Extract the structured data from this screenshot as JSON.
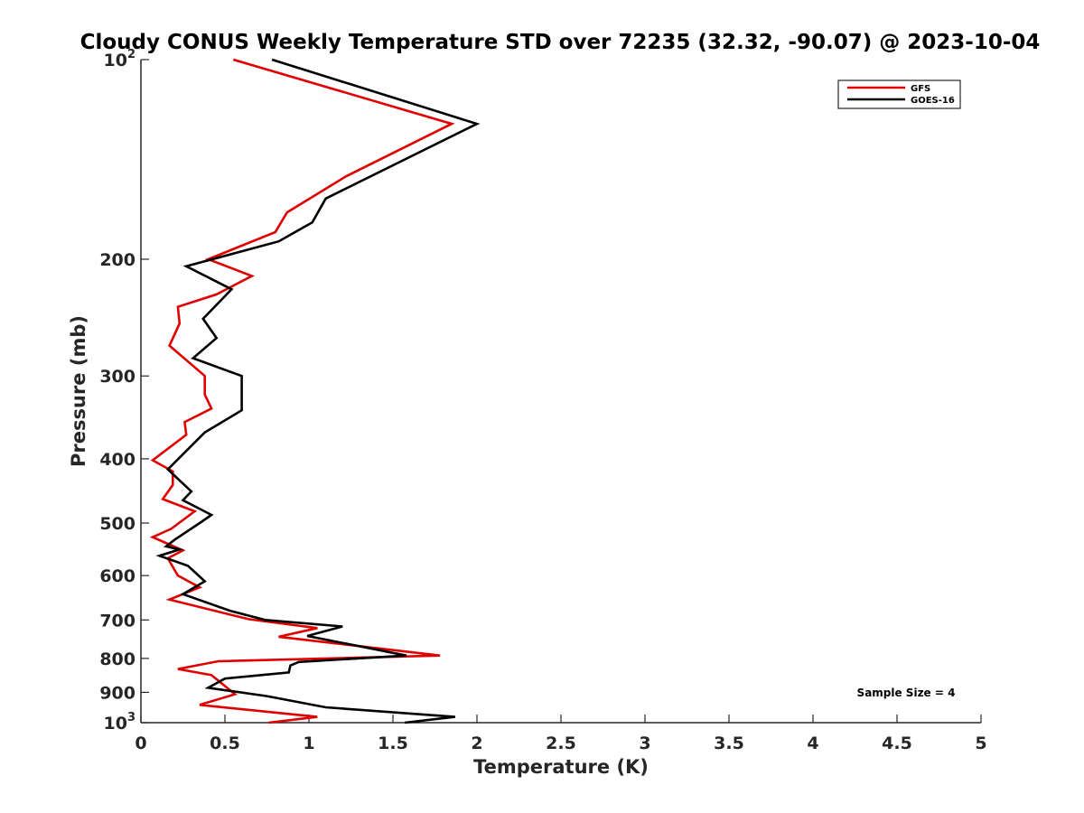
{
  "chart_data": {
    "type": "line",
    "title": "Cloudy CONUS Weekly Temperature STD over 72235 (32.32, -90.07) @ 2023-10-04",
    "xlabel": "Temperature (K)",
    "ylabel": "Pressure (mb)",
    "xlim": [
      0,
      5
    ],
    "ylim": [
      100,
      1000
    ],
    "y_scale": "log",
    "y_reversed": true,
    "x_ticks": [
      "0",
      "0.5",
      "1",
      "1.5",
      "2",
      "2.5",
      "3",
      "3.5",
      "4",
      "4.5",
      "5"
    ],
    "x_tick_values": [
      0,
      0.5,
      1,
      1.5,
      2,
      2.5,
      3,
      3.5,
      4,
      4.5,
      5
    ],
    "y_ticks": [
      {
        "value": 100,
        "base": "10",
        "exp": "2"
      },
      {
        "value": 200,
        "label": "200"
      },
      {
        "value": 300,
        "label": "300"
      },
      {
        "value": 400,
        "label": "400"
      },
      {
        "value": 500,
        "label": "500"
      },
      {
        "value": 600,
        "label": "600"
      },
      {
        "value": 700,
        "label": "700"
      },
      {
        "value": 800,
        "label": "800"
      },
      {
        "value": 900,
        "label": "900"
      },
      {
        "value": 1000,
        "base": "10",
        "exp": "3"
      }
    ],
    "grid": false,
    "legend_position": "top-right",
    "annotation": "Sample Size = 4",
    "series": [
      {
        "name": "GFS",
        "color": "#e00000",
        "points": [
          [
            0.55,
            100
          ],
          [
            1.85,
            125
          ],
          [
            1.22,
            150
          ],
          [
            0.87,
            170
          ],
          [
            0.8,
            182
          ],
          [
            0.4,
            200
          ],
          [
            0.66,
            212
          ],
          [
            0.45,
            226
          ],
          [
            0.22,
            236
          ],
          [
            0.23,
            250
          ],
          [
            0.17,
            270
          ],
          [
            0.38,
            300
          ],
          [
            0.38,
            320
          ],
          [
            0.42,
            336
          ],
          [
            0.26,
            352
          ],
          [
            0.27,
            368
          ],
          [
            0.07,
            402
          ],
          [
            0.19,
            418
          ],
          [
            0.19,
            438
          ],
          [
            0.13,
            460
          ],
          [
            0.32,
            480
          ],
          [
            0.18,
            510
          ],
          [
            0.07,
            525
          ],
          [
            0.25,
            550
          ],
          [
            0.16,
            565
          ],
          [
            0.22,
            600
          ],
          [
            0.35,
            625
          ],
          [
            0.17,
            652
          ],
          [
            0.64,
            698
          ],
          [
            1.05,
            720
          ],
          [
            0.82,
            742
          ],
          [
            1.78,
            792
          ],
          [
            0.46,
            808
          ],
          [
            0.22,
            830
          ],
          [
            0.42,
            848
          ],
          [
            0.56,
            906
          ],
          [
            0.35,
            940
          ],
          [
            1.05,
            980
          ],
          [
            0.76,
            1000
          ]
        ]
      },
      {
        "name": "GOES-16",
        "color": "#000000",
        "points": [
          [
            0.78,
            100
          ],
          [
            2.0,
            125
          ],
          [
            1.1,
            162
          ],
          [
            1.02,
            176
          ],
          [
            0.82,
            188
          ],
          [
            0.27,
            205
          ],
          [
            0.54,
            222
          ],
          [
            0.37,
            246
          ],
          [
            0.45,
            263
          ],
          [
            0.31,
            282
          ],
          [
            0.6,
            300
          ],
          [
            0.6,
            320
          ],
          [
            0.6,
            338
          ],
          [
            0.38,
            365
          ],
          [
            0.16,
            415
          ],
          [
            0.3,
            448
          ],
          [
            0.25,
            462
          ],
          [
            0.42,
            486
          ],
          [
            0.35,
            500
          ],
          [
            0.2,
            530
          ],
          [
            0.15,
            542
          ],
          [
            0.23,
            548
          ],
          [
            0.11,
            560
          ],
          [
            0.28,
            580
          ],
          [
            0.38,
            612
          ],
          [
            0.25,
            640
          ],
          [
            0.53,
            678
          ],
          [
            0.74,
            700
          ],
          [
            1.2,
            716
          ],
          [
            0.99,
            740
          ],
          [
            1.58,
            792
          ],
          [
            0.94,
            810
          ],
          [
            0.89,
            820
          ],
          [
            0.88,
            840
          ],
          [
            0.5,
            858
          ],
          [
            0.4,
            886
          ],
          [
            0.75,
            912
          ],
          [
            1.1,
            948
          ],
          [
            1.87,
            980
          ],
          [
            1.57,
            1000
          ]
        ]
      }
    ]
  }
}
